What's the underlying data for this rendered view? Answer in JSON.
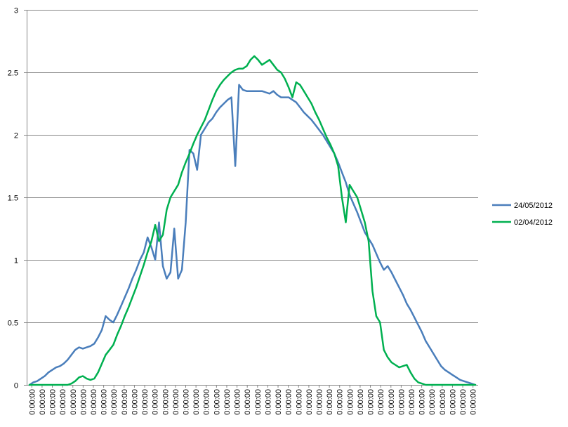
{
  "chart_data": {
    "type": "line",
    "title": "",
    "xlabel": "",
    "ylabel": "",
    "ylim": [
      0,
      3
    ],
    "y_ticks": [
      "0",
      "0.5",
      "1",
      "1.5",
      "2",
      "2.5",
      "3"
    ],
    "x_tick_label": "0:00:00",
    "x_tick_count": 44,
    "grid": "horizontal",
    "legend_position": "right",
    "series": [
      {
        "name": "24/05/2012",
        "color": "#4a7ebb",
        "values": [
          0.0,
          0.02,
          0.03,
          0.05,
          0.07,
          0.1,
          0.12,
          0.14,
          0.15,
          0.17,
          0.2,
          0.24,
          0.28,
          0.3,
          0.29,
          0.3,
          0.31,
          0.33,
          0.38,
          0.44,
          0.55,
          0.52,
          0.5,
          0.56,
          0.63,
          0.7,
          0.77,
          0.85,
          0.92,
          1.0,
          1.06,
          1.18,
          1.1,
          1.0,
          1.3,
          0.95,
          0.85,
          0.9,
          1.25,
          0.85,
          0.92,
          1.3,
          1.88,
          1.85,
          1.72,
          2.0,
          2.05,
          2.1,
          2.13,
          2.18,
          2.22,
          2.25,
          2.28,
          2.3,
          1.75,
          2.4,
          2.36,
          2.35,
          2.35,
          2.35,
          2.35,
          2.35,
          2.34,
          2.33,
          2.35,
          2.32,
          2.3,
          2.3,
          2.3,
          2.28,
          2.26,
          2.22,
          2.18,
          2.15,
          2.12,
          2.08,
          2.04,
          2.0,
          1.95,
          1.9,
          1.85,
          1.78,
          1.7,
          1.62,
          1.52,
          1.45,
          1.38,
          1.3,
          1.22,
          1.17,
          1.12,
          1.05,
          0.98,
          0.92,
          0.95,
          0.9,
          0.84,
          0.78,
          0.72,
          0.65,
          0.6,
          0.54,
          0.48,
          0.42,
          0.35,
          0.3,
          0.25,
          0.2,
          0.15,
          0.12,
          0.1,
          0.08,
          0.06,
          0.04,
          0.03,
          0.02,
          0.01,
          0.0
        ]
      },
      {
        "name": "02/04/2012",
        "color": "#00b050",
        "values": [
          0.0,
          0.0,
          0.0,
          0.0,
          0.0,
          0.0,
          0.0,
          0.0,
          0.0,
          0.0,
          0.0,
          0.01,
          0.03,
          0.06,
          0.07,
          0.05,
          0.04,
          0.05,
          0.1,
          0.17,
          0.24,
          0.28,
          0.32,
          0.4,
          0.47,
          0.55,
          0.62,
          0.7,
          0.78,
          0.87,
          0.96,
          1.06,
          1.15,
          1.28,
          1.15,
          1.2,
          1.4,
          1.5,
          1.55,
          1.6,
          1.7,
          1.78,
          1.85,
          1.93,
          2.0,
          2.06,
          2.12,
          2.2,
          2.28,
          2.35,
          2.4,
          2.44,
          2.47,
          2.5,
          2.52,
          2.53,
          2.53,
          2.55,
          2.6,
          2.63,
          2.6,
          2.56,
          2.58,
          2.6,
          2.56,
          2.52,
          2.5,
          2.45,
          2.38,
          2.3,
          2.42,
          2.4,
          2.35,
          2.3,
          2.25,
          2.18,
          2.12,
          2.05,
          1.98,
          1.92,
          1.85,
          1.75,
          1.5,
          1.3,
          1.6,
          1.55,
          1.5,
          1.4,
          1.3,
          1.15,
          0.75,
          0.55,
          0.5,
          0.28,
          0.22,
          0.18,
          0.16,
          0.14,
          0.15,
          0.16,
          0.1,
          0.05,
          0.02,
          0.01,
          0.0,
          0.0,
          0.0,
          0.0,
          0.0,
          0.0,
          0.0,
          0.0,
          0.0,
          0.0,
          0.0,
          0.0,
          0.0,
          0.0
        ]
      }
    ]
  }
}
